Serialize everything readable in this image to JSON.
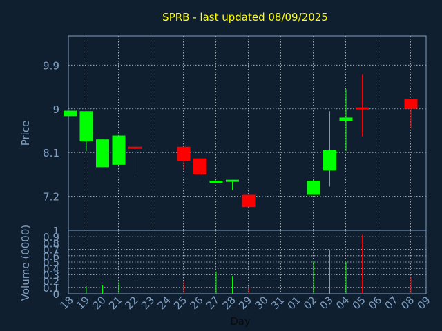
{
  "chart_data": {
    "type": "candlestick",
    "title": "SPRB - last updated 08/09/2025",
    "xlabel": "Day",
    "price_panel": {
      "ylabel": "Price",
      "yticks": [
        "9.9",
        "9",
        "8.1",
        "7.2"
      ],
      "ytick_values": [
        9.9,
        9.0,
        8.1,
        7.2
      ],
      "ylim": [
        6.5,
        10.5
      ]
    },
    "volume_panel": {
      "ylabel": "Volume (0000)",
      "yticks": [
        "1",
        "0.9",
        "0.8",
        "0.7",
        "0.6",
        "0.5",
        "0.4",
        "0.3",
        "0.2",
        "0.1",
        "0"
      ],
      "ytick_values": [
        1,
        0.9,
        0.8,
        0.7,
        0.6,
        0.5,
        0.4,
        0.3,
        0.2,
        0.1,
        0
      ],
      "ylim": [
        0,
        1
      ]
    },
    "x_ticks": [
      "18",
      "19",
      "20",
      "21",
      "22",
      "23",
      "24",
      "25",
      "26",
      "27",
      "28",
      "29",
      "30",
      "31",
      "01",
      "02",
      "03",
      "04",
      "05",
      "06",
      "07",
      "08",
      "09"
    ],
    "candles": [
      {
        "day": "18",
        "open": 8.85,
        "close": 8.96,
        "high": 8.96,
        "low": 8.85,
        "volume": 0.0
      },
      {
        "day": "19",
        "open": 8.33,
        "close": 8.95,
        "high": 8.95,
        "low": 8.13,
        "volume": 0.12
      },
      {
        "day": "20",
        "open": 7.8,
        "close": 8.37,
        "high": 8.37,
        "low": 7.8,
        "volume": 0.13
      },
      {
        "day": "21",
        "open": 7.85,
        "close": 8.45,
        "high": 8.45,
        "low": 7.85,
        "volume": 0.19
      },
      {
        "day": "22",
        "open": 8.22,
        "close": 8.18,
        "high": 8.22,
        "low": 7.65,
        "volume": 0.58
      },
      {
        "day": "25",
        "open": 8.22,
        "close": 7.93,
        "high": 8.22,
        "low": 7.75,
        "volume": 0.2
      },
      {
        "day": "26",
        "open": 7.98,
        "close": 7.65,
        "high": 7.98,
        "low": 7.58,
        "volume": 0.21
      },
      {
        "day": "27",
        "open": 7.5,
        "close": 7.52,
        "high": 7.52,
        "low": 7.5,
        "volume": 0.35
      },
      {
        "day": "28",
        "open": 7.52,
        "close": 7.54,
        "high": 7.54,
        "low": 7.33,
        "volume": 0.28
      },
      {
        "day": "29",
        "open": 7.23,
        "close": 6.98,
        "high": 7.23,
        "low": 6.98,
        "volume": 0.09
      },
      {
        "day": "02",
        "open": 7.23,
        "close": 7.52,
        "high": 7.54,
        "low": 7.23,
        "volume": 0.5
      },
      {
        "day": "03",
        "open": 7.73,
        "close": 8.15,
        "high": 8.95,
        "low": 7.4,
        "volume": 0.7
      },
      {
        "day": "04",
        "open": 8.75,
        "close": 8.82,
        "high": 9.4,
        "low": 8.13,
        "volume": 0.5
      },
      {
        "day": "05",
        "open": 9.03,
        "close": 9.0,
        "high": 9.7,
        "low": 8.43,
        "volume": 0.93
      },
      {
        "day": "08",
        "open": 9.2,
        "close": 9.0,
        "high": 9.2,
        "low": 8.6,
        "volume": 0.27
      }
    ],
    "colors": {
      "background": "#0f1f30",
      "up": "#00ff00",
      "down": "#ff0000",
      "title": "#ffff00",
      "axis_text": "#7f9fc2",
      "grid": "#ffffff"
    },
    "grid": true
  }
}
